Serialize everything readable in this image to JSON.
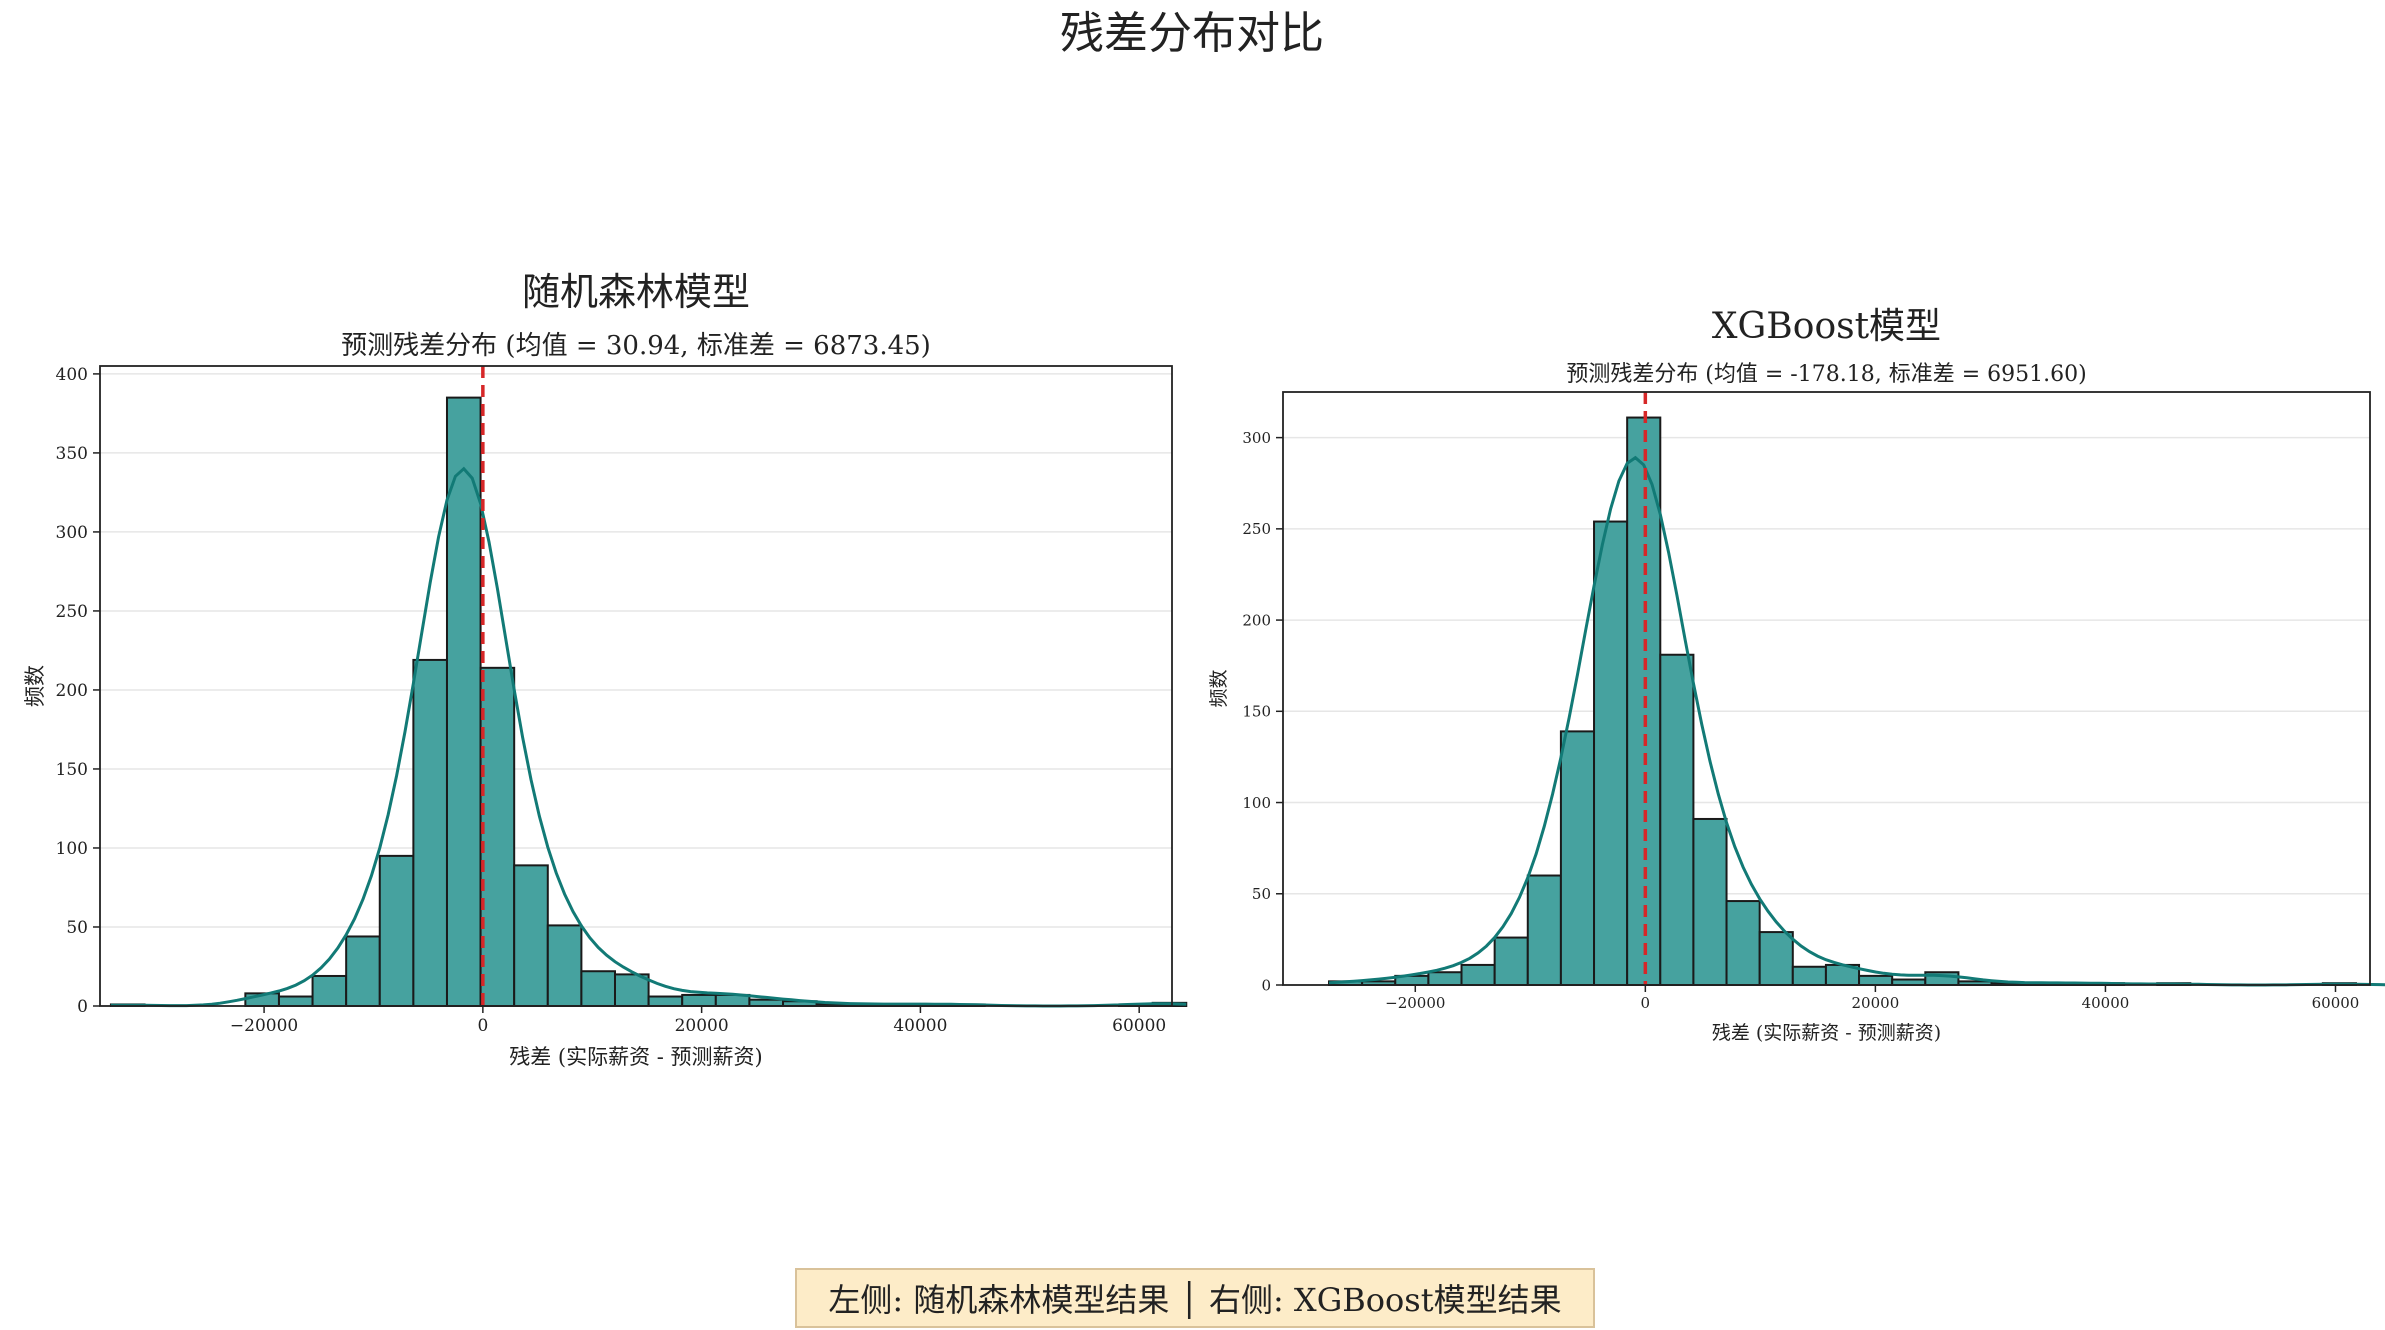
{
  "figure": {
    "title": "残差分布对比",
    "footer": "左侧: 随机森林模型结果 │ 右侧: XGBoost模型结果"
  },
  "colors": {
    "bar_fill": "#46a29f",
    "bar_edge": "#1a1a1a",
    "kde_line": "#127a76",
    "mean_line": "#d62728",
    "grid": "#e6e6e6"
  },
  "chart_data": [
    {
      "type": "bar",
      "title": "随机森林模型",
      "subtitle": "预测残差分布 (均值 = 30.94, 标准差 = 6873.45)",
      "xlabel": "残差 (实际薪资 - 预测薪资)",
      "ylabel": "频数",
      "xlim": [
        -35000,
        63000
      ],
      "ylim": [
        0,
        405
      ],
      "xticks": [
        -20000,
        0,
        20000,
        40000,
        60000
      ],
      "xtick_labels": [
        "−20000",
        "0",
        "20000",
        "40000",
        "60000"
      ],
      "yticks": [
        0,
        50,
        100,
        150,
        200,
        250,
        300,
        350,
        400
      ],
      "grid": "horizontal",
      "mean_line_x": 0,
      "bin_start": -34000,
      "bin_width": 3072,
      "values": [
        1,
        0,
        0,
        0,
        8,
        6,
        19,
        44,
        95,
        219,
        385,
        214,
        89,
        51,
        22,
        20,
        6,
        7,
        7,
        4,
        3,
        1,
        1,
        1,
        1,
        1,
        0,
        0,
        0,
        0,
        1,
        2
      ],
      "kde_peak": 340
    },
    {
      "type": "bar",
      "title": "XGBoost模型",
      "subtitle": "预测残差分布 (均值 = -178.18, 标准差 = 6951.60)",
      "xlabel": "残差 (实际薪资 - 预测薪资)",
      "ylabel": "频数",
      "xlim": [
        -31500,
        63000
      ],
      "ylim": [
        0,
        325
      ],
      "xticks": [
        -20000,
        0,
        20000,
        40000,
        60000
      ],
      "xtick_labels": [
        "−20000",
        "0",
        "20000",
        "40000",
        "60000"
      ],
      "yticks": [
        0,
        50,
        100,
        150,
        200,
        250,
        300
      ],
      "grid": "horizontal",
      "mean_line_x": 0,
      "bin_start": -27500,
      "bin_width": 2880,
      "values": [
        2,
        2,
        5,
        7,
        11,
        26,
        60,
        139,
        254,
        311,
        181,
        91,
        46,
        29,
        10,
        11,
        5,
        3,
        7,
        2,
        1,
        1,
        1,
        1,
        0,
        1,
        0,
        0,
        0,
        0,
        1,
        0
      ],
      "kde_peak": 289
    }
  ]
}
